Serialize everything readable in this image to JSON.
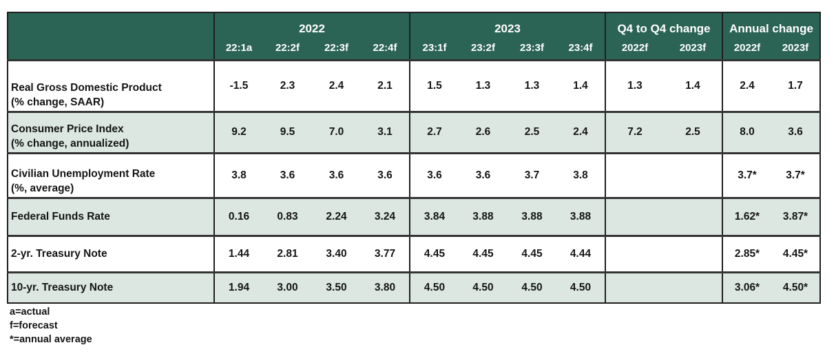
{
  "chart_data": {
    "type": "table",
    "header": {
      "corner": "",
      "groups": [
        {
          "key": "2022",
          "label": "2022",
          "columns": [
            "22:1a",
            "22:2f",
            "22:3f",
            "22:4f"
          ]
        },
        {
          "key": "2023",
          "label": "2023",
          "columns": [
            "23:1f",
            "23:2f",
            "23:3f",
            "23:4f"
          ]
        },
        {
          "key": "q4_to_q4",
          "label": "Q4 to Q4 change",
          "columns": [
            "2022f",
            "2023f"
          ]
        },
        {
          "key": "annual",
          "label": "Annual change",
          "columns": [
            "2022f",
            "2023f"
          ]
        }
      ]
    },
    "rows": [
      {
        "label": "Real Gross Domestic Product",
        "sublabel": "(% change, SAAR)",
        "shaded": false,
        "values": {
          "2022": [
            "-1.5",
            "2.3",
            "2.4",
            "2.1"
          ],
          "2023": [
            "1.5",
            "1.3",
            "1.3",
            "1.4"
          ],
          "q4_to_q4": [
            "1.3",
            "1.4"
          ],
          "annual": [
            "2.4",
            "1.7"
          ]
        }
      },
      {
        "label": "Consumer Price Index",
        "sublabel": "(% change, annualized)",
        "shaded": true,
        "values": {
          "2022": [
            "9.2",
            "9.5",
            "7.0",
            "3.1"
          ],
          "2023": [
            "2.7",
            "2.6",
            "2.5",
            "2.4"
          ],
          "q4_to_q4": [
            "7.2",
            "2.5"
          ],
          "annual": [
            "8.0",
            "3.6"
          ]
        }
      },
      {
        "label": "Civilian Unemployment Rate",
        "sublabel": "(%, average)",
        "shaded": false,
        "values": {
          "2022": [
            "3.8",
            "3.6",
            "3.6",
            "3.6"
          ],
          "2023": [
            "3.6",
            "3.6",
            "3.7",
            "3.8"
          ],
          "q4_to_q4": [
            "",
            ""
          ],
          "annual": [
            "3.7*",
            "3.7*"
          ]
        }
      },
      {
        "label": "Federal Funds Rate",
        "sublabel": "",
        "shaded": true,
        "values": {
          "2022": [
            "0.16",
            "0.83",
            "2.24",
            "3.24"
          ],
          "2023": [
            "3.84",
            "3.88",
            "3.88",
            "3.88"
          ],
          "q4_to_q4": [
            "",
            ""
          ],
          "annual": [
            "1.62*",
            "3.87*"
          ]
        }
      },
      {
        "label": "2-yr. Treasury Note",
        "sublabel": "",
        "shaded": false,
        "values": {
          "2022": [
            "1.44",
            "2.81",
            "3.40",
            "3.77"
          ],
          "2023": [
            "4.45",
            "4.45",
            "4.45",
            "4.44"
          ],
          "q4_to_q4": [
            "",
            ""
          ],
          "annual": [
            "2.85*",
            "4.45*"
          ]
        }
      },
      {
        "label": "10-yr. Treasury Note",
        "sublabel": "",
        "shaded": true,
        "values": {
          "2022": [
            "1.94",
            "3.00",
            "3.50",
            "3.80"
          ],
          "2023": [
            "4.50",
            "4.50",
            "4.50",
            "4.50"
          ],
          "q4_to_q4": [
            "",
            ""
          ],
          "annual": [
            "3.06*",
            "4.50*"
          ]
        }
      }
    ],
    "footnotes": [
      "a=actual",
      "f=forecast",
      "*=annual average"
    ],
    "colors": {
      "header_bg": "#2B6455",
      "header_text": "#FFFFFF",
      "shaded_row": "#DCE7E2",
      "white_row": "#FFFFFF",
      "border": "#1E1E1E",
      "row_line": "#333333",
      "text": "#141414"
    }
  }
}
